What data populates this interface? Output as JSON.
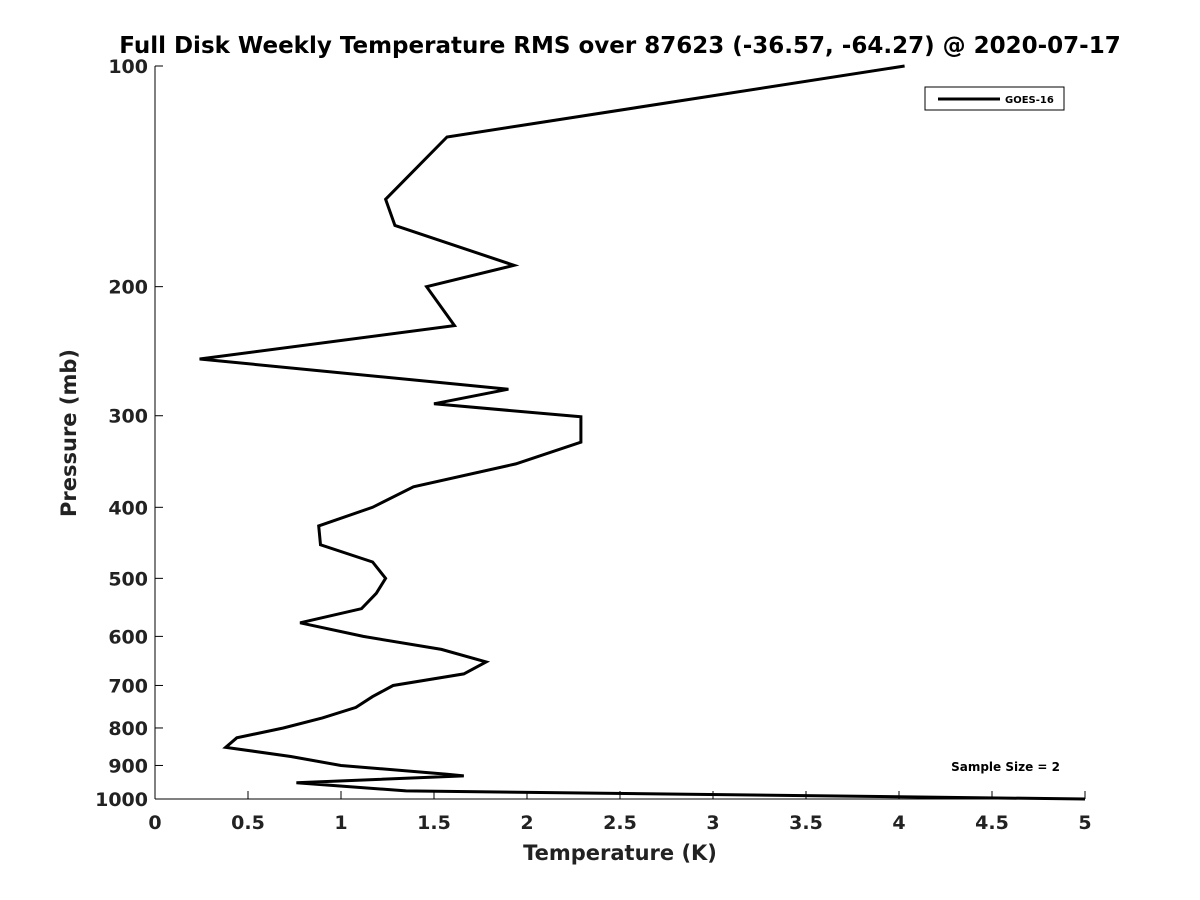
{
  "chart_data": {
    "type": "line",
    "title": "Full Disk Weekly Temperature RMS over 87623 (-36.57, -64.27) @ 2020-07-17",
    "xlabel": "Temperature (K)",
    "ylabel": "Pressure (mb)",
    "xlim": [
      0,
      5
    ],
    "ylim": [
      100,
      1000
    ],
    "y_scale": "log",
    "y_reversed": true,
    "x_ticks": [
      "0",
      "0.5",
      "1",
      "1.5",
      "2",
      "2.5",
      "3",
      "3.5",
      "4",
      "4.5",
      "5"
    ],
    "y_ticks": [
      "100",
      "200",
      "300",
      "400",
      "500",
      "600",
      "700",
      "800",
      "900",
      "1000"
    ],
    "grid": false,
    "legend": {
      "placement": "top-right",
      "entries": [
        "GOES-16"
      ]
    },
    "annotation": "Sample Size = 2",
    "line_color": "#000000",
    "series": [
      {
        "name": "GOES-16",
        "points": [
          [
            4.03,
            100
          ],
          [
            1.57,
            125
          ],
          [
            1.24,
            152
          ],
          [
            1.29,
            165
          ],
          [
            1.93,
            187
          ],
          [
            1.46,
            200
          ],
          [
            1.61,
            226
          ],
          [
            0.24,
            251
          ],
          [
            1.9,
            276
          ],
          [
            1.5,
            289
          ],
          [
            2.29,
            301
          ],
          [
            2.29,
            326
          ],
          [
            1.94,
            349
          ],
          [
            1.39,
            375
          ],
          [
            1.17,
            400
          ],
          [
            0.88,
            424
          ],
          [
            0.89,
            450
          ],
          [
            1.17,
            475
          ],
          [
            1.24,
            500
          ],
          [
            1.19,
            524
          ],
          [
            1.11,
            550
          ],
          [
            0.78,
            575
          ],
          [
            1.12,
            600
          ],
          [
            1.54,
            625
          ],
          [
            1.78,
            650
          ],
          [
            1.66,
            675
          ],
          [
            1.28,
            700
          ],
          [
            1.17,
            725
          ],
          [
            1.08,
            750
          ],
          [
            0.9,
            775
          ],
          [
            0.69,
            800
          ],
          [
            0.44,
            825
          ],
          [
            0.38,
            850
          ],
          [
            0.73,
            875
          ],
          [
            1.0,
            900
          ],
          [
            1.57,
            925
          ],
          [
            1.66,
            930
          ],
          [
            0.76,
            950
          ],
          [
            1.35,
            975
          ],
          [
            5.0,
            1000
          ]
        ]
      }
    ]
  }
}
